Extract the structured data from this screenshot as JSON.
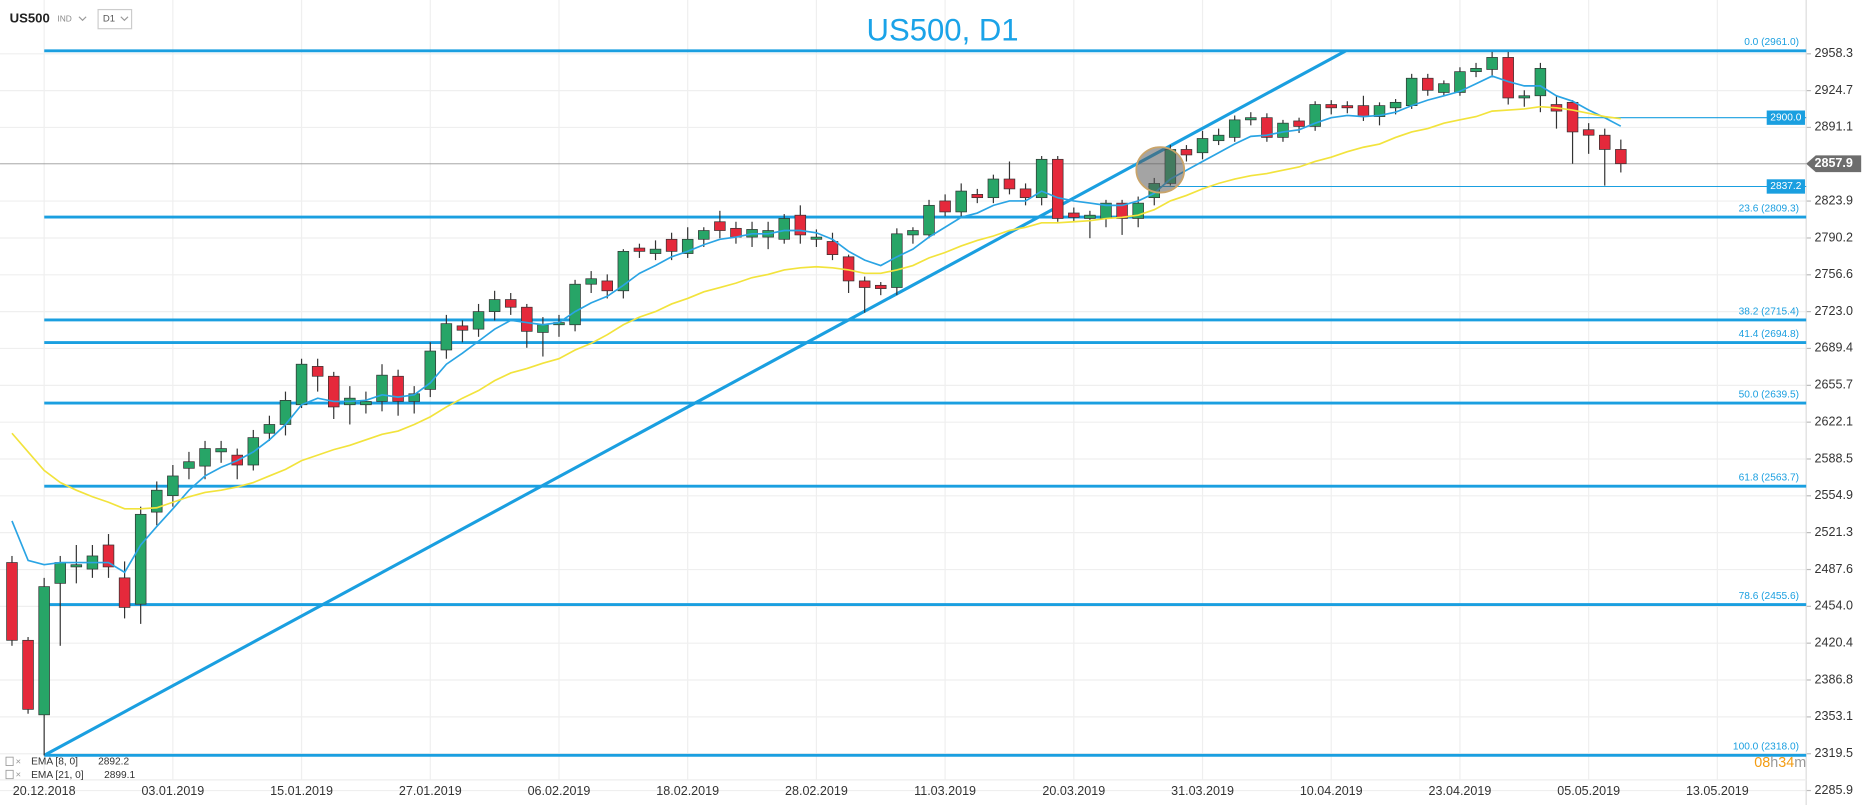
{
  "header": {
    "symbol": "US500",
    "market": "IND",
    "timeframe": "D1"
  },
  "chart_data": {
    "type": "candlestick",
    "title": "US500, D1",
    "categories": [
      null,
      null,
      "20.12.2018",
      null,
      null,
      null,
      null,
      null,
      null,
      null,
      "03.01.2019",
      null,
      null,
      null,
      null,
      null,
      null,
      null,
      "15.01.2019",
      null,
      null,
      null,
      null,
      null,
      null,
      null,
      "27.01.2019",
      null,
      null,
      null,
      null,
      null,
      null,
      null,
      "06.02.2019",
      null,
      null,
      null,
      null,
      null,
      null,
      null,
      "18.02.2019",
      null,
      null,
      null,
      null,
      null,
      null,
      null,
      "28.02.2019",
      null,
      null,
      null,
      null,
      null,
      null,
      null,
      "11.03.2019",
      null,
      null,
      null,
      null,
      null,
      null,
      null,
      "20.03.2019",
      null,
      null,
      null,
      null,
      null,
      null,
      null,
      "31.03.2019",
      null,
      null,
      null,
      null,
      null,
      null,
      null,
      "10.04.2019",
      null,
      null,
      null,
      null,
      null,
      null,
      null,
      "23.04.2019",
      null,
      null,
      null,
      null,
      null,
      null,
      null,
      "05.05.2019",
      null,
      null,
      null,
      null,
      null,
      null,
      null,
      "13.05.2019",
      null,
      null,
      null,
      null
    ],
    "open": [
      2494,
      2423,
      2355,
      2475,
      2490,
      2488,
      2510,
      2480,
      2456,
      2540,
      2555,
      2580,
      2582,
      2595,
      2592,
      2583,
      2612,
      2620,
      2638,
      2673,
      2664,
      2638,
      2638,
      2641,
      2664,
      2641,
      2652,
      2688,
      2710,
      2707,
      2723,
      2734,
      2727,
      2704,
      2711,
      2711,
      2748,
      2751,
      2742,
      2781,
      2776,
      2789,
      2776,
      2789,
      2805,
      2799,
      2791,
      2791,
      2789,
      2811,
      2789,
      2787,
      2773,
      2751,
      2747,
      2745,
      2793,
      2793,
      2824,
      2814,
      2830,
      2827,
      2844,
      2835,
      2827,
      2862,
      2813,
      2808,
      2808,
      2822,
      2808,
      2827,
      2840,
      2871,
      2868,
      2879,
      2882,
      2898,
      2900,
      2882,
      2897,
      2892,
      2912,
      2911,
      2911,
      2901,
      2909,
      2911,
      2936,
      2923,
      2923,
      2942,
      2944,
      2955,
      2918,
      2920,
      2912,
      2914,
      2889,
      2884,
      2871,
      null,
      null,
      null,
      null,
      null,
      null,
      null,
      null,
      null,
      null
    ],
    "high": [
      2500,
      2426,
      2480,
      2500,
      2510,
      2510,
      2520,
      2495,
      2545,
      2568,
      2583,
      2595,
      2605,
      2605,
      2598,
      2615,
      2628,
      2650,
      2680,
      2680,
      2668,
      2655,
      2650,
      2675,
      2670,
      2655,
      2695,
      2720,
      2715,
      2730,
      2742,
      2740,
      2730,
      2718,
      2720,
      2752,
      2760,
      2757,
      2780,
      2785,
      2788,
      2795,
      2800,
      2800,
      2815,
      2805,
      2805,
      2805,
      2812,
      2820,
      2798,
      2795,
      2775,
      2755,
      2750,
      2799,
      2800,
      2825,
      2830,
      2840,
      2835,
      2848,
      2860,
      2840,
      2865,
      2865,
      2818,
      2815,
      2825,
      2825,
      2828,
      2845,
      2875,
      2875,
      2888,
      2890,
      2902,
      2905,
      2904,
      2898,
      2900,
      2915,
      2916,
      2915,
      2920,
      2914,
      2917,
      2940,
      2940,
      2934,
      2946,
      2950,
      2960,
      2960,
      2925,
      2950,
      2920,
      2916,
      2895,
      2890,
      2880,
      null,
      null,
      null,
      null,
      null,
      null,
      null,
      null,
      null,
      null
    ],
    "low": [
      2418,
      2356,
      2318,
      2418,
      2475,
      2480,
      2480,
      2443,
      2438,
      2528,
      2545,
      2570,
      2570,
      2585,
      2570,
      2578,
      2605,
      2610,
      2635,
      2650,
      2625,
      2620,
      2630,
      2632,
      2628,
      2630,
      2645,
      2680,
      2695,
      2700,
      2715,
      2720,
      2690,
      2682,
      2700,
      2705,
      2740,
      2735,
      2735,
      2772,
      2770,
      2770,
      2772,
      2782,
      2790,
      2785,
      2782,
      2780,
      2785,
      2785,
      2782,
      2770,
      2740,
      2722,
      2738,
      2738,
      2785,
      2790,
      2810,
      2810,
      2822,
      2822,
      2830,
      2820,
      2820,
      2805,
      2805,
      2790,
      2800,
      2793,
      2800,
      2820,
      2838,
      2860,
      2862,
      2875,
      2878,
      2893,
      2878,
      2878,
      2886,
      2888,
      2903,
      2904,
      2897,
      2893,
      2903,
      2908,
      2920,
      2920,
      2920,
      2937,
      2938,
      2912,
      2910,
      2905,
      2890,
      2858,
      2867,
      2838,
      2850,
      null,
      null,
      null,
      null,
      null,
      null,
      null,
      null,
      null,
      null
    ],
    "close": [
      2423,
      2360,
      2472,
      2494,
      2492,
      2500,
      2490,
      2453,
      2538,
      2560,
      2573,
      2586,
      2598,
      2598,
      2583,
      2608,
      2620,
      2642,
      2675,
      2664,
      2636,
      2644,
      2641,
      2665,
      2641,
      2648,
      2687,
      2712,
      2706,
      2723,
      2734,
      2727,
      2705,
      2711,
      2713,
      2748,
      2753,
      2742,
      2778,
      2778,
      2780,
      2778,
      2789,
      2797,
      2797,
      2791,
      2798,
      2797,
      2808,
      2793,
      2791,
      2775,
      2751,
      2745,
      2744,
      2794,
      2797,
      2820,
      2814,
      2833,
      2827,
      2844,
      2835,
      2827,
      2862,
      2808,
      2809,
      2811,
      2822,
      2808,
      2822,
      2840,
      2871,
      2866,
      2881,
      2884,
      2898,
      2900,
      2882,
      2895,
      2892,
      2912,
      2909,
      2909,
      2901,
      2911,
      2914,
      2936,
      2925,
      2931,
      2942,
      2945,
      2955,
      2918,
      2920,
      2945,
      2906,
      2887,
      2884,
      2871,
      2858,
      null,
      null,
      null,
      null,
      null,
      null,
      null,
      null,
      null,
      null
    ],
    "up_color": "#27a567",
    "down_color": "#e5293b",
    "series": [
      {
        "name": "EMA [8, 0]",
        "color": "#2aa4e4",
        "values": [
          2532,
          2496,
          2492,
          2494,
          2494,
          2494,
          2494,
          2485,
          2510,
          2527,
          2543,
          2560,
          2573,
          2581,
          2587,
          2595,
          2606,
          2620,
          2638,
          2644,
          2641,
          2641,
          2642,
          2647,
          2645,
          2647,
          2658,
          2675,
          2685,
          2696,
          2707,
          2715,
          2713,
          2711,
          2713,
          2723,
          2731,
          2737,
          2747,
          2758,
          2765,
          2773,
          2778,
          2784,
          2789,
          2791,
          2794,
          2794,
          2797,
          2797,
          2795,
          2789,
          2778,
          2770,
          2765,
          2773,
          2780,
          2791,
          2800,
          2809,
          2813,
          2820,
          2824,
          2824,
          2833,
          2827,
          2824,
          2822,
          2820,
          2820,
          2824,
          2831,
          2844,
          2852,
          2860,
          2868,
          2876,
          2883,
          2884,
          2887,
          2889,
          2895,
          2900,
          2902,
          2901,
          2902,
          2905,
          2911,
          2916,
          2920,
          2924,
          2931,
          2938,
          2933,
          2929,
          2929,
          2920,
          2915,
          2907,
          2900,
          2892.2,
          null,
          null,
          null,
          null,
          null,
          null,
          null,
          null,
          null,
          null
        ]
      },
      {
        "name": "EMA [21, 0]",
        "color": "#f2e33c",
        "values": [
          2612,
          2595,
          2578,
          2567,
          2560,
          2554,
          2549,
          2543,
          2543,
          2544,
          2549,
          2554,
          2558,
          2560,
          2563,
          2567,
          2573,
          2579,
          2587,
          2592,
          2597,
          2601,
          2606,
          2611,
          2614,
          2620,
          2627,
          2636,
          2644,
          2651,
          2660,
          2667,
          2671,
          2676,
          2680,
          2688,
          2694,
          2702,
          2711,
          2718,
          2723,
          2730,
          2735,
          2741,
          2745,
          2749,
          2754,
          2757,
          2761,
          2763,
          2764,
          2763,
          2761,
          2758,
          2758,
          2761,
          2765,
          2772,
          2777,
          2783,
          2788,
          2792,
          2797,
          2800,
          2804,
          2804,
          2805,
          2806,
          2808,
          2809,
          2811,
          2816,
          2824,
          2829,
          2835,
          2840,
          2844,
          2847,
          2849,
          2852,
          2855,
          2860,
          2864,
          2869,
          2873,
          2876,
          2882,
          2887,
          2890,
          2895,
          2898,
          2901,
          2906,
          2907,
          2908,
          2910,
          2909,
          2907,
          2904,
          2901,
          2899.1,
          null,
          null,
          null,
          null,
          null,
          null,
          null,
          null,
          null,
          null
        ]
      }
    ],
    "ylim": [
      2272.7,
      3007.4
    ],
    "yticks": [
      2958.3,
      2924.7,
      2891.1,
      2823.9,
      2790.2,
      2756.6,
      {
        "value": 2723,
        "label": "2723.0"
      },
      2689.4,
      2655.7,
      2622.1,
      2588.5,
      2554.9,
      2521.3,
      2487.6,
      {
        "value": 2454,
        "label": "2454.0"
      },
      2420.4,
      2386.8,
      2353.1,
      2319.5,
      2285.9
    ],
    "grid": true,
    "fib_levels": [
      {
        "value": 2961,
        "label": "0.0 (2961.0)"
      },
      {
        "value": 2809.3,
        "label": "23.6 (2809.3)"
      },
      {
        "value": 2715.4,
        "label": "38.2 (2715.4)"
      },
      {
        "value": 2694.8,
        "label": "41.4 (2694.8)"
      },
      {
        "value": 2639.5,
        "label": "50.0 (2639.5)"
      },
      {
        "value": 2563.7,
        "label": "61.8 (2563.7)"
      },
      {
        "value": 2455.6,
        "label": "78.6 (2455.6)"
      },
      {
        "value": 2318,
        "label": "100.0 (2318.0)"
      }
    ],
    "fib_color": "#1a9fe0",
    "trendline": {
      "x": [
        2,
        82.9
      ],
      "values": [
        2318,
        2961
      ]
    },
    "price_levels": [
      {
        "value": 2900,
        "label": "2900.0"
      },
      2837.2
    ],
    "last_price": 2857.9,
    "countdown": [
      "08",
      "h",
      "34",
      "m"
    ]
  }
}
